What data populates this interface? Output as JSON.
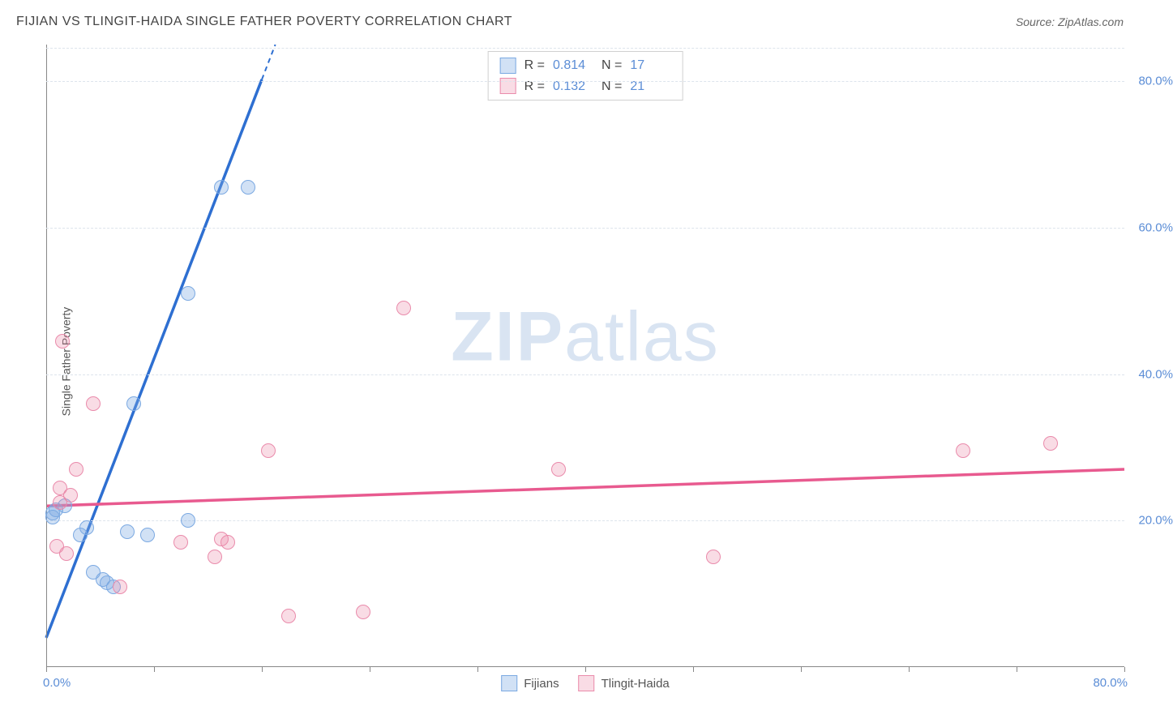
{
  "title": "FIJIAN VS TLINGIT-HAIDA SINGLE FATHER POVERTY CORRELATION CHART",
  "source_label": "Source:",
  "source_name": "ZipAtlas.com",
  "y_axis_label": "Single Father Poverty",
  "watermark_bold": "ZIP",
  "watermark_rest": "atlas",
  "chart": {
    "type": "scatter",
    "xlim": [
      0,
      80
    ],
    "ylim": [
      0,
      85
    ],
    "y_ticks": [
      20,
      40,
      60,
      80
    ],
    "y_tick_labels": [
      "20.0%",
      "40.0%",
      "60.0%",
      "80.0%"
    ],
    "x_tick_positions": [
      0,
      8,
      16,
      24,
      32,
      40,
      48,
      56,
      64,
      72,
      80
    ],
    "x_axis_labels": {
      "left": "0.0%",
      "right": "80.0%"
    },
    "grid_color": "#dde4ec",
    "background_color": "#ffffff",
    "series": [
      {
        "name": "Fijians",
        "color_fill": "rgba(123,169,226,0.35)",
        "color_stroke": "#7ba9e2",
        "trend_color": "#2e6fd1",
        "trend": {
          "x1": 0,
          "y1": 4,
          "x2": 17,
          "y2": 85,
          "dash_after_x": 16
        },
        "points": [
          {
            "x": 0.5,
            "y": 21
          },
          {
            "x": 0.5,
            "y": 20.5
          },
          {
            "x": 0.7,
            "y": 21.5
          },
          {
            "x": 2.5,
            "y": 18
          },
          {
            "x": 3.0,
            "y": 19
          },
          {
            "x": 4.5,
            "y": 11.5
          },
          {
            "x": 5.0,
            "y": 11
          },
          {
            "x": 3.5,
            "y": 13
          },
          {
            "x": 6.0,
            "y": 18.5
          },
          {
            "x": 7.5,
            "y": 18
          },
          {
            "x": 10.5,
            "y": 20
          },
          {
            "x": 6.5,
            "y": 36
          },
          {
            "x": 10.5,
            "y": 51
          },
          {
            "x": 13,
            "y": 65.5
          },
          {
            "x": 15,
            "y": 65.5
          },
          {
            "x": 4.2,
            "y": 12
          },
          {
            "x": 1.4,
            "y": 22
          }
        ]
      },
      {
        "name": "Tlingit-Haida",
        "color_fill": "rgba(235,140,170,0.30)",
        "color_stroke": "#ea8bab",
        "trend_color": "#e85a8f",
        "trend": {
          "x1": 0,
          "y1": 22,
          "x2": 80,
          "y2": 27,
          "dash_after_x": 999
        },
        "points": [
          {
            "x": 1.2,
            "y": 44.5
          },
          {
            "x": 3.5,
            "y": 36
          },
          {
            "x": 2.2,
            "y": 27
          },
          {
            "x": 1.8,
            "y": 23.5
          },
          {
            "x": 1.0,
            "y": 22.5
          },
          {
            "x": 0.8,
            "y": 16.5
          },
          {
            "x": 1.5,
            "y": 15.5
          },
          {
            "x": 5.5,
            "y": 11
          },
          {
            "x": 10.0,
            "y": 17
          },
          {
            "x": 12.5,
            "y": 15
          },
          {
            "x": 13.5,
            "y": 17
          },
          {
            "x": 13.0,
            "y": 17.5
          },
          {
            "x": 16.5,
            "y": 29.5
          },
          {
            "x": 18,
            "y": 7
          },
          {
            "x": 23.5,
            "y": 7.5
          },
          {
            "x": 26.5,
            "y": 49
          },
          {
            "x": 38,
            "y": 27
          },
          {
            "x": 49.5,
            "y": 15
          },
          {
            "x": 68,
            "y": 29.5
          },
          {
            "x": 74.5,
            "y": 30.5
          },
          {
            "x": 1.0,
            "y": 24.5
          }
        ]
      }
    ],
    "legend_top": [
      {
        "series_idx": 0,
        "r_label": "R =",
        "r_value": "0.814",
        "n_label": "N =",
        "n_value": "17"
      },
      {
        "series_idx": 1,
        "r_label": "R =",
        "r_value": "0.132",
        "n_label": "N =",
        "n_value": "21"
      }
    ]
  }
}
